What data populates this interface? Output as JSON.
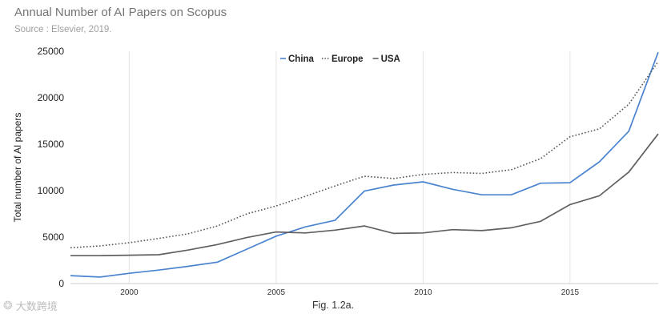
{
  "header": {
    "title": "Annual Number of AI Papers on Scopus",
    "subtitle": "Source : Elsevier, 2019."
  },
  "caption": "Fig. 1.2a.",
  "watermark": "大数跨境",
  "chart_data": {
    "type": "line",
    "title": "Annual Number of AI Papers on Scopus",
    "subtitle": "Source : Elsevier, 2019.",
    "xlabel": "",
    "ylabel": "Total number of AI papers",
    "xlim": [
      1998,
      2018
    ],
    "ylim": [
      0,
      25000
    ],
    "yticks": [
      0,
      5000,
      10000,
      15000,
      20000,
      25000
    ],
    "ytick_labels": [
      "0",
      "5000",
      "10000",
      "15000",
      "20000",
      "25000"
    ],
    "xticks": [
      2000,
      2005,
      2010,
      2015
    ],
    "xtick_labels": [
      "2000",
      "2005",
      "2010",
      "2015"
    ],
    "grid": "vertical",
    "legend_position": "top-center",
    "x": [
      1998,
      1999,
      2000,
      2001,
      2002,
      2003,
      2004,
      2005,
      2006,
      2007,
      2008,
      2009,
      2010,
      2011,
      2012,
      2013,
      2014,
      2015,
      2016,
      2017,
      2018
    ],
    "series": [
      {
        "name": "China",
        "color": "#4a84d0",
        "dash": "solid",
        "values": [
          850,
          700,
          1100,
          1450,
          1850,
          2300,
          3700,
          5100,
          6100,
          6800,
          9950,
          10600,
          10950,
          10150,
          9550,
          9550,
          10800,
          10850,
          13100,
          16400,
          24900
        ]
      },
      {
        "name": "Europe",
        "color": "#555555",
        "dash": "dotted",
        "values": [
          3850,
          4050,
          4400,
          4850,
          5350,
          6200,
          7500,
          8350,
          9400,
          10500,
          11550,
          11300,
          11750,
          11950,
          11850,
          12250,
          13450,
          15800,
          16650,
          19300,
          23900
        ]
      },
      {
        "name": "USA",
        "color": "#606060",
        "dash": "solid",
        "values": [
          3000,
          3000,
          3050,
          3100,
          3600,
          4200,
          4950,
          5550,
          5450,
          5750,
          6200,
          5400,
          5450,
          5800,
          5700,
          6000,
          6700,
          8500,
          9450,
          12000,
          16100
        ]
      }
    ]
  }
}
